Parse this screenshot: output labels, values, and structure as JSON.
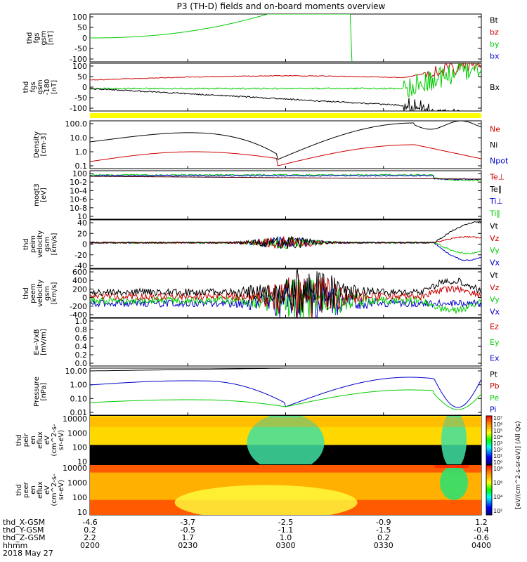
{
  "title": "P3 (TH-D) fields and on-board moments overview",
  "date_label": "2018 May 27",
  "colors": {
    "black": "#000000",
    "red": "#cc0000",
    "green": "#00cc00",
    "blue": "#0000cc",
    "yellow": "#ffff00"
  },
  "chart_data": [
    {
      "type": "line",
      "ylabel_lines": [
        "thd",
        "fgs",
        "gsm",
        "[nT]"
      ],
      "yticks": [
        "100",
        "50",
        "0",
        "-50",
        "-100"
      ],
      "ylim": [
        -100,
        110
      ],
      "legend": [
        {
          "name": "Bt",
          "color": "#000000"
        },
        {
          "name": "bz",
          "color": "#cc0000"
        },
        {
          "name": "by",
          "color": "#00cc00"
        },
        {
          "name": "bx",
          "color": "#0000cc"
        }
      ]
    },
    {
      "type": "line",
      "ylabel_lines": [
        "thd",
        "fgs",
        "gsm",
        "-180",
        "[nT]"
      ],
      "yticks": [
        "100",
        "50",
        "0",
        "-50",
        "-100"
      ],
      "ylim": [
        -125,
        110
      ],
      "legend": [
        {
          "name": "Bx",
          "color": "#000000"
        }
      ]
    },
    {
      "type": "line",
      "ylabel_lines": [
        "Density",
        "[cm-3]"
      ],
      "yticks": [
        "100.0",
        "10.0",
        "1.0",
        "0.1"
      ],
      "ylim": [
        0.1,
        200
      ],
      "scale": "log",
      "legend": [
        {
          "name": "Ne",
          "color": "#cc0000"
        },
        {
          "name": "Ni",
          "color": "#000000"
        },
        {
          "name": "Npot",
          "color": "#0000cc"
        }
      ]
    },
    {
      "type": "line",
      "ylabel_lines": [
        "moqt3",
        "[eV]"
      ],
      "yticks": [
        "100",
        "10-2",
        "10-4",
        "10-6",
        "10-8",
        "10"
      ],
      "scale": "log",
      "legend": [
        {
          "name": "Te⊥",
          "color": "#cc0000"
        },
        {
          "name": "Te∥",
          "color": "#000000"
        },
        {
          "name": "Ti⊥",
          "color": "#0000cc"
        },
        {
          "name": "Ti∥",
          "color": "#00cc00"
        }
      ]
    },
    {
      "type": "line",
      "ylabel_lines": [
        "thd",
        "peim",
        "velocity",
        "gsm",
        "[km/s]"
      ],
      "yticks": [
        "40",
        "20",
        "0",
        "-20",
        "-40"
      ],
      "ylim": [
        -40,
        45
      ],
      "legend": [
        {
          "name": "Vt",
          "color": "#000000"
        },
        {
          "name": "Vz",
          "color": "#cc0000"
        },
        {
          "name": "Vy",
          "color": "#00cc00"
        },
        {
          "name": "Vx",
          "color": "#0000cc"
        }
      ]
    },
    {
      "type": "line",
      "ylabel_lines": [
        "thd",
        "peem",
        "velocity",
        "gsm",
        "[km/s]"
      ],
      "yticks": [
        "600",
        "400",
        "200",
        "0",
        "-200",
        "-400"
      ],
      "ylim": [
        -400,
        600
      ],
      "legend": [
        {
          "name": "Vt",
          "color": "#000000"
        },
        {
          "name": "Vz",
          "color": "#cc0000"
        },
        {
          "name": "Vy",
          "color": "#00cc00"
        },
        {
          "name": "Vx",
          "color": "#0000cc"
        }
      ]
    },
    {
      "type": "line",
      "ylabel_lines": [
        "E=-VxB",
        "[mV/m]"
      ],
      "yticks": [
        "1.0",
        "0.8",
        "0.6",
        "0.4",
        "0.2",
        "0.0"
      ],
      "ylim": [
        0,
        1
      ],
      "legend": [
        {
          "name": "Ez",
          "color": "#cc0000"
        },
        {
          "name": "Ey",
          "color": "#00cc00"
        },
        {
          "name": "Ex",
          "color": "#0000cc"
        }
      ]
    },
    {
      "type": "line",
      "ylabel_lines": [
        "Pressure",
        "[nPa]"
      ],
      "yticks": [
        "10.00",
        "1.00",
        "0.10",
        "0.01"
      ],
      "scale": "log",
      "legend": [
        {
          "name": "Pt",
          "color": "#000000"
        },
        {
          "name": "Pb",
          "color": "#cc0000"
        },
        {
          "name": "Pe",
          "color": "#00cc00"
        },
        {
          "name": "Pi",
          "color": "#0000cc"
        }
      ]
    },
    {
      "type": "heatmap",
      "ylabel_lines": [
        "thd",
        "peir",
        "en",
        "eflux",
        "eV",
        "(cm^2-s-",
        "sr-eV)"
      ],
      "yticks": [
        "10000",
        "1000",
        "100",
        "10"
      ]
    },
    {
      "type": "heatmap",
      "ylabel_lines": [
        "thd",
        "peer",
        "en",
        "eflux",
        "eV",
        "(cm^2-s-",
        "sr-eV)"
      ],
      "yticks": [
        "10000",
        "1000",
        "100",
        "10"
      ]
    }
  ],
  "colorbar": {
    "top_ticks": [
      "10⁷",
      "10⁶",
      "10⁵",
      "10⁴",
      "10³",
      "10²",
      "10¹",
      "10⁰"
    ],
    "bottom_ticks": [
      "10⁸",
      "10⁶",
      "10⁴",
      "10²"
    ],
    "label": "[eV/(cm^2-s-sr-eV)] (All Qs)"
  },
  "x_axis": {
    "rows": [
      {
        "label": "thd_X-GSM",
        "values": [
          "-4.6",
          "-3.7",
          "-2.5",
          "-0.9",
          "1.2"
        ]
      },
      {
        "label": "thd_Y-GSM",
        "values": [
          "0.2",
          "-0.5",
          "-1.1",
          "-1.5",
          "-0.4"
        ]
      },
      {
        "label": "thd_Z-GSM",
        "values": [
          "2.2",
          "1.7",
          "1.0",
          "0.2",
          "-0.6"
        ]
      },
      {
        "label": "hhmm",
        "values": [
          "0200",
          "0230",
          "0300",
          "0330",
          "0400"
        ]
      }
    ]
  }
}
